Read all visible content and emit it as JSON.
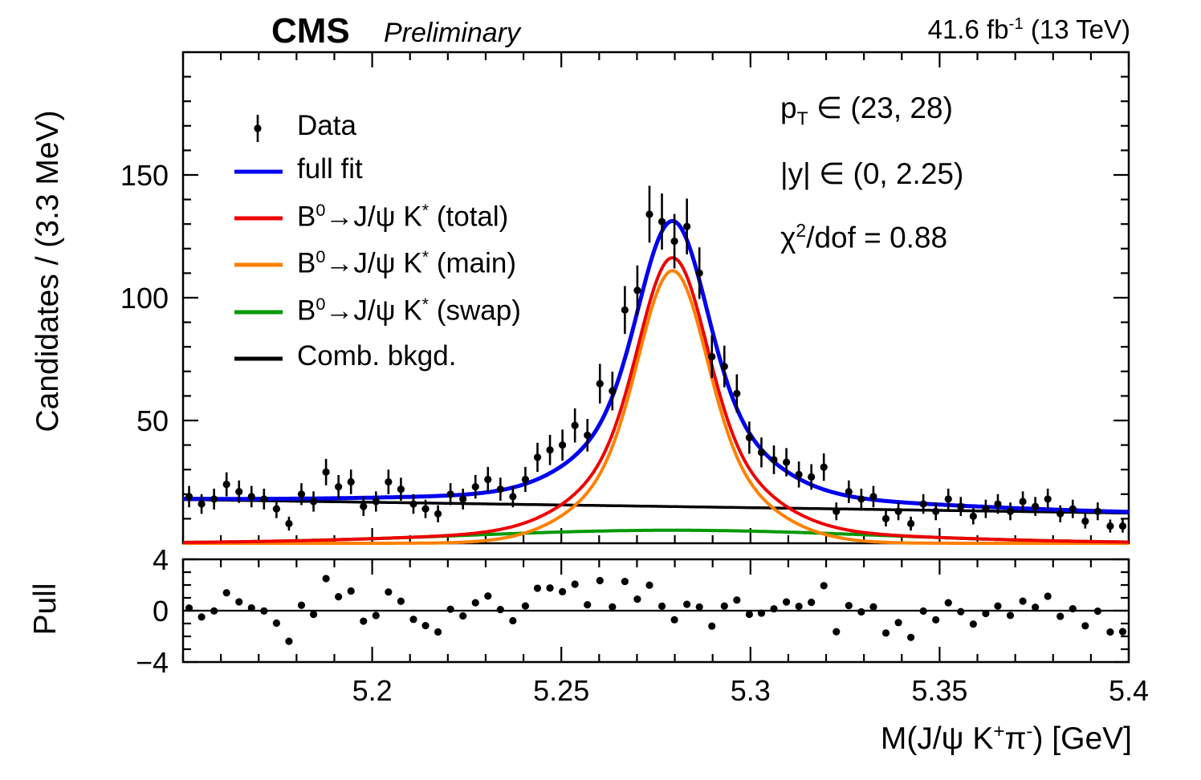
{
  "header": {
    "experiment": "CMS",
    "status": "Preliminary",
    "lumi": "41.6 fb^{-1} (13 TeV)"
  },
  "annotations": {
    "pt": "p_{T} ∈ (23, 28)",
    "rapidity": "|y| ∈ (0, 2.25)",
    "chi2": "χ^{2}/dof = 0.88"
  },
  "axes": {
    "main_y_title": "Candidates / (3.3 MeV)",
    "pull_y_title": "Pull",
    "x_title": "M(J/ψ K^{+}π^{-}) [GeV]",
    "x_range": [
      5.15,
      5.4
    ],
    "x_major_ticks": [
      5.2,
      5.25,
      5.3,
      5.35,
      5.4
    ],
    "x_major_labels": [
      "5.2",
      "5.25",
      "5.3",
      "5.35",
      "5.4"
    ],
    "x_minor_step": 0.01,
    "main_y_range": [
      0,
      200
    ],
    "main_y_major_ticks": [
      50,
      100,
      150
    ],
    "main_y_major_labels": [
      "50",
      "100",
      "150"
    ],
    "main_y_minor_step": 10,
    "pull_y_range": [
      -4,
      4
    ],
    "pull_y_major_ticks": [
      -4,
      0,
      4
    ],
    "pull_y_major_labels": [
      "−4",
      "0",
      "4"
    ],
    "pull_y_minor_step": 1
  },
  "legend": {
    "entries": [
      {
        "label": "Data",
        "style": "marker",
        "color": "#000000"
      },
      {
        "label": "full fit",
        "style": "line",
        "color": "#0000ee"
      },
      {
        "label": "B^{0}→J/ψ K^{*} (total)",
        "style": "line",
        "color": "#ee0000"
      },
      {
        "label": "B^{0}→J/ψ K^{*} (main)",
        "style": "line",
        "color": "#ff8000"
      },
      {
        "label": "B^{0}→J/ψ K^{*} (swap)",
        "style": "line",
        "color": "#009900"
      },
      {
        "label": "Comb. bkgd.",
        "style": "line",
        "color": "#000000"
      }
    ]
  },
  "chart_data": {
    "type": "scatter",
    "title": "CMS Preliminary B0 -> J/psi K* mass fit, pT in (23,28), |y| in (0,2.25)",
    "xlabel": "M(J/psi K+ pi-) [GeV]",
    "ylabel": "Candidates / (3.3 MeV)",
    "xlim": [
      5.15,
      5.4
    ],
    "ylim": [
      0,
      200
    ],
    "pull_ylim": [
      -4,
      4
    ],
    "bin_width_gev": 0.003289,
    "x": [
      5.1516,
      5.1549,
      5.1582,
      5.1615,
      5.1648,
      5.1681,
      5.1714,
      5.1747,
      5.178,
      5.1813,
      5.1845,
      5.1878,
      5.1911,
      5.1944,
      5.1977,
      5.201,
      5.2043,
      5.2076,
      5.2109,
      5.2141,
      5.2174,
      5.2207,
      5.224,
      5.2273,
      5.2306,
      5.2339,
      5.2372,
      5.2405,
      5.2437,
      5.247,
      5.2503,
      5.2536,
      5.2569,
      5.2602,
      5.2635,
      5.2668,
      5.2701,
      5.2733,
      5.2766,
      5.2799,
      5.2832,
      5.2865,
      5.2898,
      5.2931,
      5.2964,
      5.2997,
      5.3029,
      5.3062,
      5.3095,
      5.3128,
      5.3161,
      5.3194,
      5.3227,
      5.326,
      5.3293,
      5.3325,
      5.3358,
      5.3391,
      5.3424,
      5.3457,
      5.349,
      5.3523,
      5.3556,
      5.3589,
      5.3622,
      5.3654,
      5.3687,
      5.372,
      5.3753,
      5.3786,
      5.3819,
      5.3852,
      5.3885,
      5.3918,
      5.3951,
      5.3984
    ],
    "y": [
      19,
      16,
      18,
      24,
      21,
      19,
      18,
      14,
      8,
      20,
      17,
      29,
      23,
      25,
      15,
      17,
      25,
      22,
      16,
      14,
      12,
      20,
      18,
      23,
      26,
      22,
      19,
      26,
      35,
      38,
      40,
      48,
      44,
      65,
      62,
      95,
      103,
      134,
      131,
      123,
      129,
      110,
      76,
      72,
      61,
      43,
      37,
      34,
      33,
      28,
      27,
      31,
      13,
      21,
      18,
      19,
      10,
      13,
      8,
      16,
      13,
      18,
      15,
      11,
      14,
      16,
      13,
      17,
      15,
      18,
      12,
      14,
      9,
      13,
      7,
      7
    ],
    "yerr_mode": "sqrt(y)",
    "pull_definition": "(y - fit) / sqrt(fit)",
    "fit_model": {
      "peak_mass": 5.2794,
      "main": {
        "amplitude": 111,
        "frac_narrow": 0.65,
        "sigma_narrow": 0.0085,
        "sigma_wide": 0.0185
      },
      "swap": {
        "amplitude": 5.3,
        "sigma": 0.055
      },
      "background_linear": {
        "y_at_xmin": 17.8,
        "y_at_xmax": 12.3
      }
    },
    "curves": [
      {
        "name": "full fit",
        "composition": "main+swap+background",
        "color": "#0000ee"
      },
      {
        "name": "signal total",
        "composition": "main+swap",
        "color": "#ee0000"
      },
      {
        "name": "signal main",
        "composition": "main",
        "color": "#ff8000"
      },
      {
        "name": "signal swap",
        "composition": "swap",
        "color": "#009900"
      },
      {
        "name": "combinatorial background",
        "composition": "background",
        "color": "#000000"
      }
    ],
    "legend_entries": [
      "Data",
      "full fit",
      "B0->J/psi K* (total)",
      "B0->J/psi K* (main)",
      "B0->J/psi K* (swap)",
      "Comb. bkgd."
    ]
  }
}
